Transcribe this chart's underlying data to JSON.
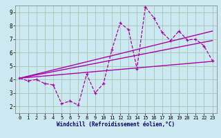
{
  "xlabel": "Windchill (Refroidissement éolien,°C)",
  "bg_color": "#cce8f0",
  "grid_color": "#aaccbb",
  "line_color": "#aa00aa",
  "xmin": -0.5,
  "xmax": 23.5,
  "ymin": 1.5,
  "ymax": 9.5,
  "yticks": [
    2,
    3,
    4,
    5,
    6,
    7,
    8,
    9
  ],
  "xticks": [
    0,
    1,
    2,
    3,
    4,
    5,
    6,
    7,
    8,
    9,
    10,
    11,
    12,
    13,
    14,
    15,
    16,
    17,
    18,
    19,
    20,
    21,
    22,
    23
  ],
  "line1_x": [
    0,
    1,
    2,
    3,
    4,
    5,
    6,
    7,
    8,
    9,
    10,
    11,
    12,
    13,
    14,
    15,
    16,
    17,
    18,
    19,
    20,
    21,
    22,
    23
  ],
  "line1_y": [
    4.1,
    3.9,
    4.0,
    3.7,
    3.6,
    2.2,
    2.4,
    2.1,
    4.4,
    3.0,
    3.7,
    6.2,
    8.2,
    7.7,
    4.8,
    9.4,
    8.6,
    7.5,
    6.9,
    7.6,
    6.95,
    7.0,
    6.5,
    5.4
  ],
  "trend1_x": [
    0,
    23
  ],
  "trend1_y": [
    4.1,
    5.35
  ],
  "trend2_x": [
    0,
    23
  ],
  "trend2_y": [
    4.1,
    6.9
  ],
  "trend3_x": [
    0,
    23
  ],
  "trend3_y": [
    4.1,
    7.6
  ]
}
